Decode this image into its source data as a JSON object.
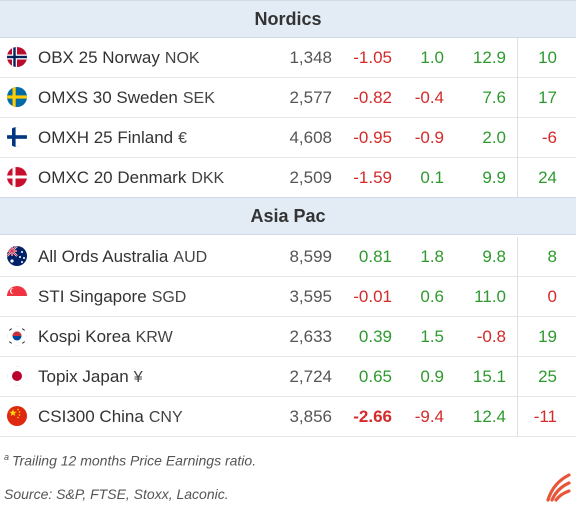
{
  "sections": [
    {
      "title": "Nordics",
      "rows": [
        {
          "flag": "norway-flag-icon",
          "name": "OBX 25 Norway",
          "currency": "NOK",
          "level": "1,348",
          "v1": "-1.05",
          "v2": "1.0",
          "v3": "12.9",
          "v4": "10"
        },
        {
          "flag": "sweden-flag-icon",
          "name": "OMXS 30 Sweden",
          "currency": "SEK",
          "level": "2,577",
          "v1": "-0.82",
          "v2": "-0.4",
          "v3": "7.6",
          "v4": "17"
        },
        {
          "flag": "finland-flag-icon",
          "name": "OMXH 25 Finland",
          "currency": "€",
          "level": "4,608",
          "v1": "-0.95",
          "v2": "-0.9",
          "v3": "2.0",
          "v4": "-6"
        },
        {
          "flag": "denmark-flag-icon",
          "name": "OMXC 20 Denmark",
          "currency": "DKK",
          "level": "2,509",
          "v1": "-1.59",
          "v2": "0.1",
          "v3": "9.9",
          "v4": "24"
        }
      ]
    },
    {
      "title": "Asia Pac",
      "rows": [
        {
          "flag": "australia-flag-icon",
          "name": "All Ords Australia",
          "currency": "AUD",
          "level": "8,599",
          "v1": "0.81",
          "v2": "1.8",
          "v3": "9.8",
          "v4": "8"
        },
        {
          "flag": "singapore-flag-icon",
          "name": "STI Singapore",
          "currency": "SGD",
          "level": "3,595",
          "v1": "-0.01",
          "v2": "0.6",
          "v3": "11.0",
          "v4": "0"
        },
        {
          "flag": "south-korea-flag-icon",
          "name": "Kospi Korea",
          "currency": "KRW",
          "level": "2,633",
          "v1": "0.39",
          "v2": "1.5",
          "v3": "-0.8",
          "v4": "19"
        },
        {
          "flag": "japan-flag-icon",
          "name": "Topix Japan",
          "currency": "¥",
          "level": "2,724",
          "v1": "0.65",
          "v2": "0.9",
          "v3": "15.1",
          "v4": "25"
        },
        {
          "flag": "china-flag-icon",
          "name": "CSI300 China",
          "currency": "CNY",
          "level": "3,856",
          "v1": "-2.66",
          "v1_bold": true,
          "v2": "-9.4",
          "v3": "12.4",
          "v4": "-11"
        }
      ]
    }
  ],
  "footnote": {
    "marker": "a",
    "text": "Trailing 12 months Price Earnings ratio.",
    "source": "Source: S&P, FTSE, Stoxx, Laconic."
  },
  "colors": {
    "positive": "#2e9a2e",
    "negative": "#d42a2a",
    "header_bg": "#e3ecf4",
    "logo": "#e8563a"
  },
  "logo": "laconic-logo-icon"
}
